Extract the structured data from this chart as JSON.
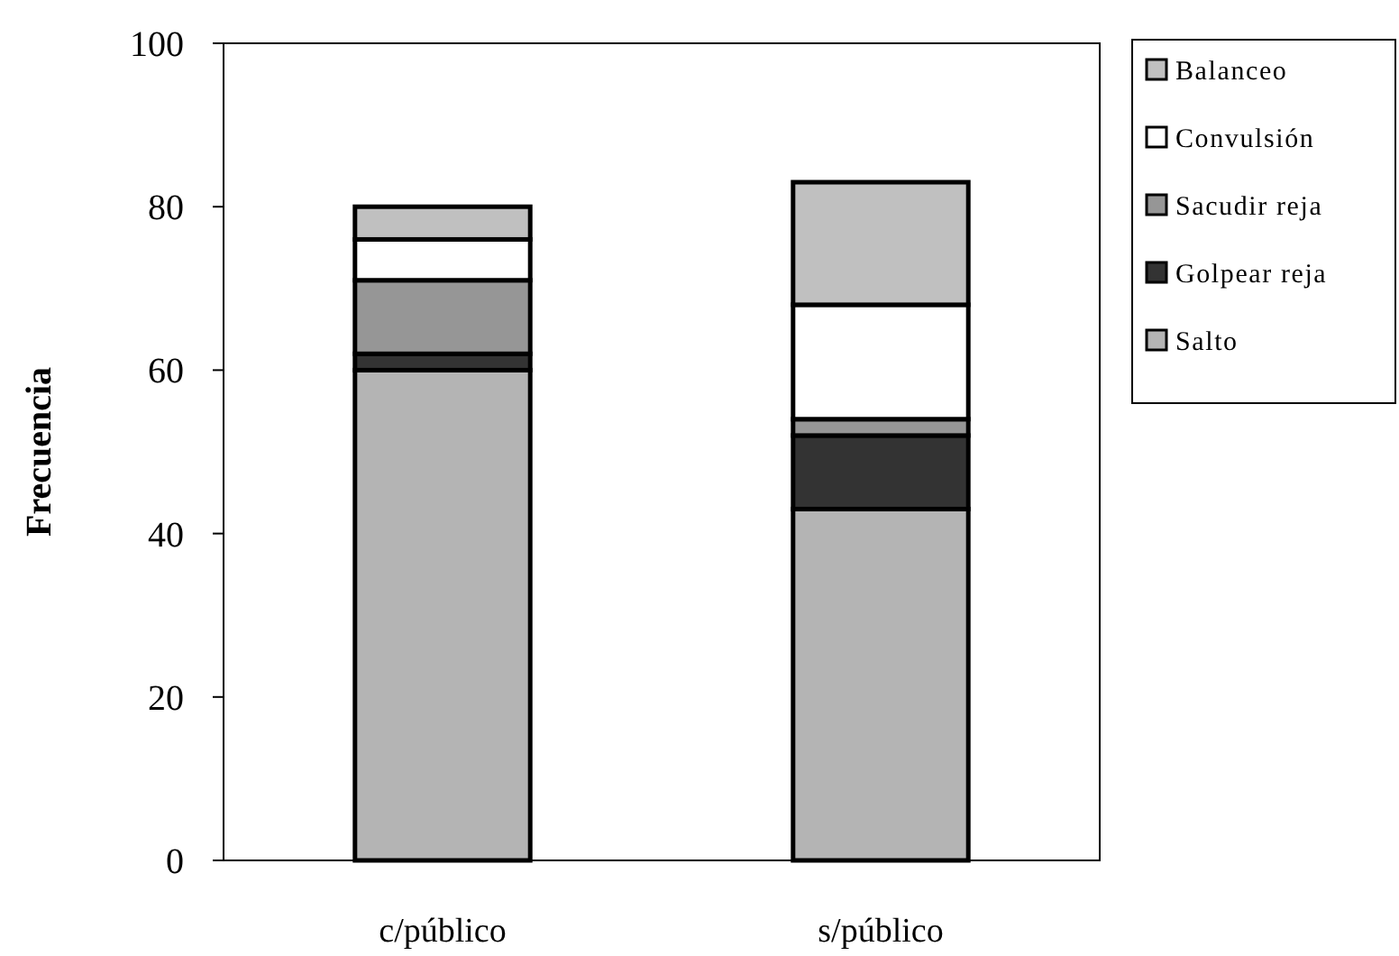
{
  "chart_data": {
    "type": "bar",
    "stacked": true,
    "ylabel": "Frecuencia",
    "categories": [
      "c/público",
      "s/público"
    ],
    "series": [
      {
        "name": "Salto",
        "color": "#b4b4b4",
        "values": [
          60,
          43
        ]
      },
      {
        "name": "Golpear reja",
        "color": "#333333",
        "values": [
          2,
          9
        ]
      },
      {
        "name": "Sacudir reja",
        "color": "#969696",
        "values": [
          9,
          2
        ]
      },
      {
        "name": "Convulsión",
        "color": "#ffffff",
        "values": [
          5,
          14
        ]
      },
      {
        "name": "Balanceo",
        "color": "#c0c0c0",
        "values": [
          4,
          15
        ]
      }
    ],
    "ylim": [
      0,
      100
    ],
    "yticks": [
      0,
      20,
      40,
      60,
      80,
      100
    ],
    "legend": "top right"
  }
}
